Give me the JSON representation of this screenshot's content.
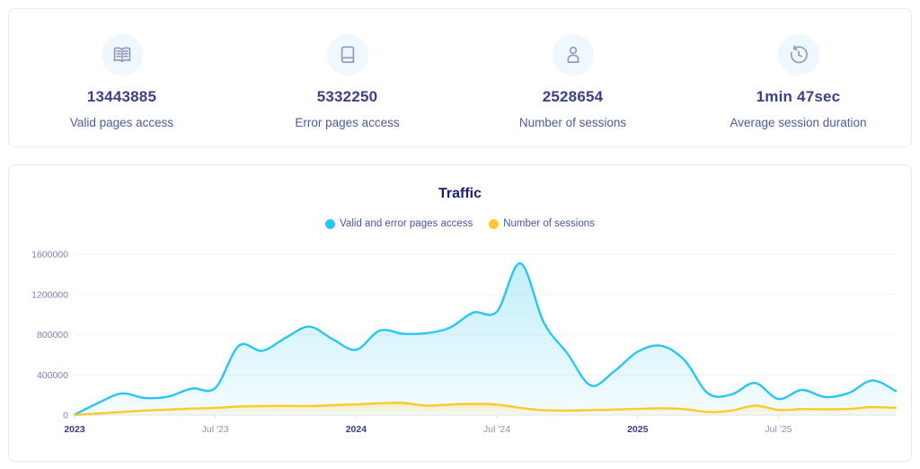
{
  "stats": {
    "cards": [
      {
        "icon": "open-book-icon",
        "value": "13443885",
        "label": "Valid pages access"
      },
      {
        "icon": "closed-book-icon",
        "value": "5332250",
        "label": "Error pages access"
      },
      {
        "icon": "person-icon",
        "value": "2528654",
        "label": "Number of sessions"
      },
      {
        "icon": "history-clock-icon",
        "value": "1min 47sec",
        "label": "Average session duration"
      }
    ]
  },
  "chart_data": {
    "type": "area",
    "title": "Traffic",
    "x": [
      "2023-01",
      "2023-02",
      "2023-03",
      "2023-04",
      "2023-05",
      "2023-06",
      "2023-07",
      "2023-08",
      "2023-09",
      "2023-10",
      "2023-11",
      "2023-12",
      "2024-01",
      "2024-02",
      "2024-03",
      "2024-04",
      "2024-05",
      "2024-06",
      "2024-07",
      "2024-08",
      "2024-09",
      "2024-10",
      "2024-11",
      "2024-12",
      "2025-01",
      "2025-02",
      "2025-03",
      "2025-04",
      "2025-05",
      "2025-06",
      "2025-07",
      "2025-08",
      "2025-09",
      "2025-10",
      "2025-11",
      "2025-12"
    ],
    "series": [
      {
        "name": "Valid and error pages access",
        "color": "#29c6f3",
        "values": [
          5000,
          120000,
          215000,
          170000,
          185000,
          265000,
          270000,
          690000,
          640000,
          770000,
          880000,
          755000,
          650000,
          840000,
          810000,
          815000,
          870000,
          1020000,
          1030000,
          1510000,
          920000,
          615000,
          295000,
          435000,
          630000,
          690000,
          545000,
          215000,
          205000,
          320000,
          160000,
          250000,
          180000,
          220000,
          345000,
          240000
        ]
      },
      {
        "name": "Number of sessions",
        "color": "#fdc92b",
        "values": [
          2000,
          15000,
          30000,
          45000,
          55000,
          65000,
          72000,
          85000,
          90000,
          92000,
          90000,
          98000,
          107000,
          118000,
          122000,
          95000,
          105000,
          112000,
          105000,
          72000,
          48000,
          45000,
          50000,
          55000,
          62000,
          68000,
          60000,
          30000,
          45000,
          95000,
          52000,
          60000,
          58000,
          62000,
          80000,
          72000
        ]
      }
    ],
    "ylim": [
      0,
      1600000
    ],
    "y_ticks": [
      0,
      400000,
      800000,
      1200000,
      1600000
    ],
    "x_ticks": [
      {
        "index": 0,
        "label": "2023",
        "emphasis": true
      },
      {
        "index": 6,
        "label": "Jul '23",
        "emphasis": false
      },
      {
        "index": 12,
        "label": "2024",
        "emphasis": true
      },
      {
        "index": 18,
        "label": "Jul '24",
        "emphasis": false
      },
      {
        "index": 24,
        "label": "2025",
        "emphasis": true
      },
      {
        "index": 30,
        "label": "Jul '25",
        "emphasis": false
      }
    ],
    "grid": true,
    "legend_position": "top"
  },
  "colors": {
    "card_border": "#e7eaf3",
    "icon_circle_bg": "#eef8fe",
    "stat_value": "#3c4184",
    "stat_label": "#4d59a4",
    "title": "#1a2173",
    "grid_line": "#f0f2f7",
    "axis_line": "#e3e6ef"
  }
}
